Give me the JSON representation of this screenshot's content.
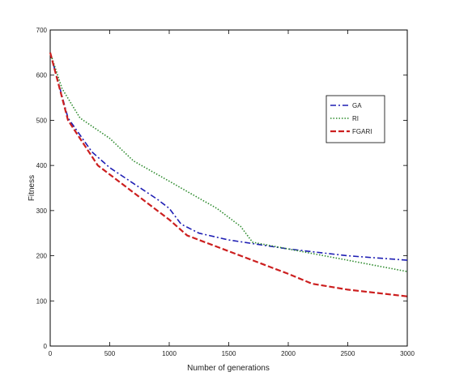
{
  "chart_data": {
    "type": "line",
    "title": "",
    "xlabel": "Number of generations",
    "ylabel": "Fitness",
    "xlim": [
      0,
      3000
    ],
    "ylim": [
      0,
      700
    ],
    "xticks": [
      0,
      500,
      1000,
      1500,
      2000,
      2500,
      3000
    ],
    "yticks": [
      0,
      100,
      200,
      300,
      400,
      500,
      600,
      700
    ],
    "grid": false,
    "legend": "top-right",
    "series": [
      {
        "name": "GA",
        "color": "#1f1fb4",
        "style": "dashdot",
        "x": [
          0,
          150,
          350,
          500,
          700,
          900,
          1000,
          1100,
          1250,
          1500,
          2000,
          2500,
          3000
        ],
        "y": [
          650,
          505,
          430,
          395,
          360,
          325,
          305,
          270,
          250,
          235,
          215,
          200,
          190
        ]
      },
      {
        "name": "RI",
        "color": "#2e8b2e",
        "style": "dotted",
        "x": [
          0,
          100,
          250,
          500,
          700,
          1000,
          1200,
          1400,
          1600,
          1700,
          2000,
          2500,
          3000
        ],
        "y": [
          650,
          570,
          505,
          460,
          410,
          365,
          335,
          305,
          265,
          230,
          215,
          190,
          165
        ]
      },
      {
        "name": "FGARI",
        "color": "#cc1f1f",
        "style": "dashed",
        "x": [
          0,
          150,
          400,
          700,
          1000,
          1150,
          1500,
          2000,
          2200,
          2500,
          3000
        ],
        "y": [
          650,
          500,
          400,
          340,
          280,
          245,
          210,
          160,
          138,
          125,
          110
        ]
      }
    ]
  }
}
